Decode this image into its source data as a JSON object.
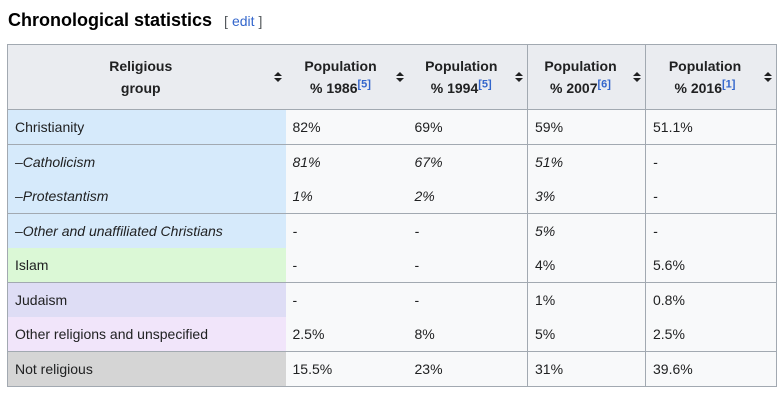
{
  "heading": {
    "title": "Chronological statistics",
    "edit_bracket_open": "[",
    "edit_label": "edit",
    "edit_bracket_close": "]"
  },
  "table": {
    "columns": [
      {
        "id": "religious-group",
        "line1": "Religious",
        "line2": "group",
        "ref": ""
      },
      {
        "id": "population-1986",
        "line1": "Population",
        "line2": "% 1986",
        "ref": "[5]"
      },
      {
        "id": "population-1994",
        "line1": "Population",
        "line2": "% 1994",
        "ref": "[5]"
      },
      {
        "id": "population-2007",
        "line1": "Population",
        "line2": "% 2007",
        "ref": "[6]"
      },
      {
        "id": "population-2016",
        "line1": "Population",
        "line2": "% 2016",
        "ref": "[1]"
      }
    ],
    "rows": [
      {
        "group": "Christianity",
        "italic": false,
        "color": "#d6eafb",
        "border_top": true,
        "values": [
          "82%",
          "69%",
          "59%",
          "51.1%"
        ]
      },
      {
        "group": "–Catholicism",
        "italic": true,
        "color": "#d6eafb",
        "border_top": true,
        "values": [
          "81%",
          "67%",
          "51%",
          "-"
        ]
      },
      {
        "group": "–Protestantism",
        "italic": true,
        "color": "#d6eafb",
        "border_top": false,
        "values": [
          "1%",
          "2%",
          "3%",
          "-"
        ]
      },
      {
        "group": "–Other and unaffiliated Christians",
        "italic": true,
        "color": "#d6eafb",
        "border_top": true,
        "values": [
          "-",
          "-",
          "5%",
          "-"
        ]
      },
      {
        "group": "Islam",
        "italic": false,
        "color": "#dbf8d6",
        "border_top": false,
        "values": [
          "-",
          "-",
          "4%",
          "5.6%"
        ]
      },
      {
        "group": "Judaism",
        "italic": false,
        "color": "#deddf5",
        "border_top": true,
        "values": [
          "-",
          "-",
          "1%",
          "0.8%"
        ]
      },
      {
        "group": "Other religions and unspecified",
        "italic": false,
        "color": "#f1e5fa",
        "border_top": false,
        "values": [
          "2.5%",
          "8%",
          "5%",
          "2.5%"
        ]
      },
      {
        "group": "Not religious",
        "italic": false,
        "color": "#d5d5d5",
        "border_top": true,
        "values": [
          "15.5%",
          "23%",
          "31%",
          "39.6%"
        ]
      }
    ]
  },
  "colors": {
    "table_border": "#a2a9b1",
    "header_bg": "#eaecf0",
    "cell_bg": "#f8f9fa",
    "link_blue": "#3366cc",
    "bracket_gray": "#54595d",
    "text": "#202122"
  }
}
